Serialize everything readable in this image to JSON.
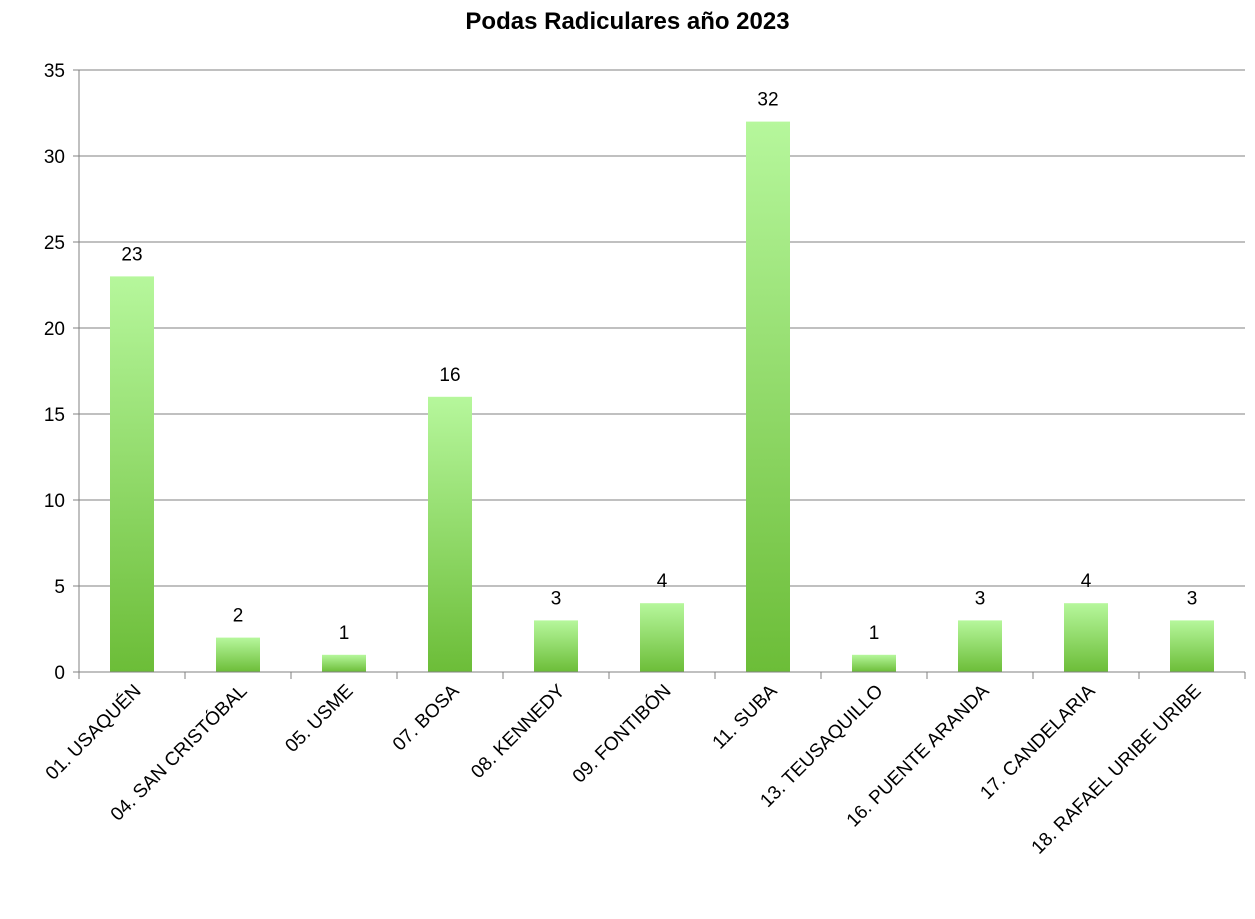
{
  "chart_data": {
    "type": "bar",
    "title": "Podas Radiculares año 2023",
    "xlabel": "",
    "ylabel": "",
    "categories": [
      "01. USAQUÉN",
      "04. SAN CRISTÓBAL",
      "05. USME",
      "07. BOSA",
      "08. KENNEDY",
      "09. FONTIBÓN",
      "11. SUBA",
      "13. TEUSAQUILLO",
      "16. PUENTE ARANDA",
      "17. CANDELARIA",
      "18. RAFAEL URIBE URIBE"
    ],
    "values": [
      23,
      2,
      1,
      16,
      3,
      4,
      32,
      1,
      3,
      4,
      3
    ],
    "ylim": [
      0,
      35
    ],
    "yticks": [
      0,
      5,
      10,
      15,
      20,
      25,
      30,
      35
    ],
    "grid": true,
    "legend": "none",
    "colors": {
      "bar_top": "#b6f79c",
      "bar_bottom": "#6cbd38",
      "axis": "#808080",
      "grid": "#808080"
    }
  }
}
